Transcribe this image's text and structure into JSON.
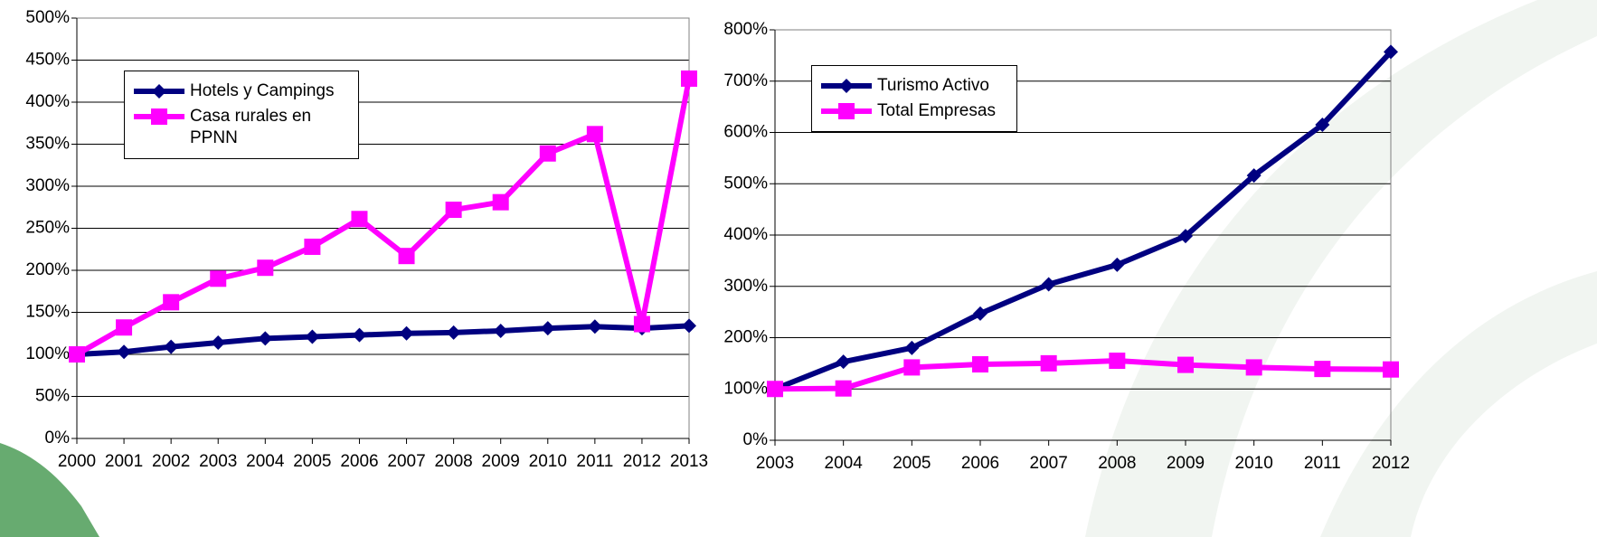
{
  "chart_data": [
    {
      "type": "line",
      "categories": [
        "2000",
        "2001",
        "2002",
        "2003",
        "2004",
        "2005",
        "2006",
        "2007",
        "2008",
        "2009",
        "2010",
        "2011",
        "2012",
        "2013"
      ],
      "series": [
        {
          "name": "Hotels y Campings",
          "color": "#000080",
          "marker": "diamond",
          "values": [
            100,
            103,
            109,
            114,
            119,
            121,
            123,
            125,
            126,
            128,
            131,
            133,
            131,
            134
          ]
        },
        {
          "name": "Casa rurales en PPNN",
          "color": "#ff00ff",
          "marker": "square",
          "values": [
            100,
            132,
            162,
            190,
            203,
            228,
            261,
            217,
            272,
            281,
            339,
            362,
            136,
            428
          ]
        }
      ],
      "ylim": [
        0,
        500
      ],
      "yticks": [
        {
          "value": 0,
          "label": "0%"
        },
        {
          "value": 50,
          "label": "50%"
        },
        {
          "value": 100,
          "label": "100%"
        },
        {
          "value": 150,
          "label": "150%"
        },
        {
          "value": 200,
          "label": "200%"
        },
        {
          "value": 250,
          "label": "250%"
        },
        {
          "value": 300,
          "label": "300%"
        },
        {
          "value": 350,
          "label": "350%"
        },
        {
          "value": 400,
          "label": "400%"
        },
        {
          "value": 450,
          "label": "450%"
        },
        {
          "value": 500,
          "label": "500%"
        }
      ],
      "grid": true,
      "legend": "upper left"
    },
    {
      "type": "line",
      "categories": [
        "2003",
        "2004",
        "2005",
        "2006",
        "2007",
        "2008",
        "2009",
        "2010",
        "2011",
        "2012"
      ],
      "series": [
        {
          "name": "Turismo Activo",
          "color": "#000080",
          "marker": "diamond",
          "values": [
            100,
            153,
            180,
            247,
            304,
            342,
            398,
            516,
            615,
            757
          ]
        },
        {
          "name": "Total Empresas",
          "color": "#ff00ff",
          "marker": "square",
          "values": [
            100,
            101,
            142,
            148,
            150,
            155,
            147,
            142,
            139,
            138
          ]
        }
      ],
      "ylim": [
        0,
        800
      ],
      "yticks": [
        {
          "value": 0,
          "label": "0%"
        },
        {
          "value": 100,
          "label": "100%"
        },
        {
          "value": 200,
          "label": "200%"
        },
        {
          "value": 300,
          "label": "300%"
        },
        {
          "value": 400,
          "label": "400%"
        },
        {
          "value": 500,
          "label": "500%"
        },
        {
          "value": 600,
          "label": "600%"
        },
        {
          "value": 700,
          "label": "700%"
        },
        {
          "value": 800,
          "label": "800%"
        }
      ],
      "grid": true,
      "legend": "upper left"
    }
  ]
}
